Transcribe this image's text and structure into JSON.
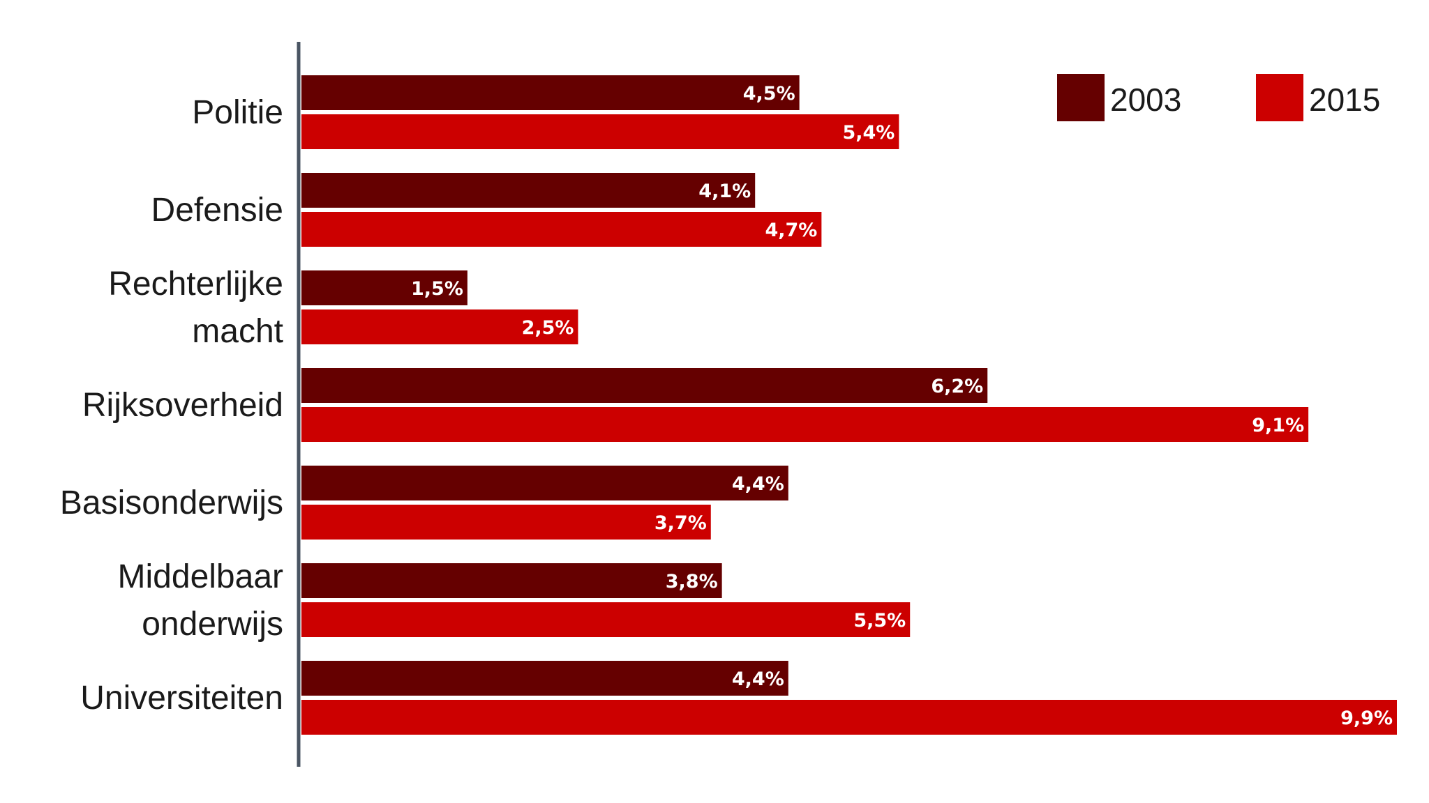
{
  "chart_data": {
    "type": "bar",
    "orientation": "horizontal",
    "categories": [
      [
        "Politie"
      ],
      [
        "Defensie"
      ],
      [
        "Rechterlijke",
        "macht"
      ],
      [
        "Rijksoverheid"
      ],
      [
        "Basisonderwijs"
      ],
      [
        "Middelbaar",
        "onderwijs"
      ],
      [
        "Universiteiten"
      ]
    ],
    "series": [
      {
        "name": "2003",
        "color": "#650000",
        "values": [
          4.5,
          4.1,
          1.5,
          6.2,
          4.4,
          3.8,
          4.4
        ],
        "labels": [
          "4,5%",
          "4,1%",
          "1,5%",
          "6,2%",
          "4,4%",
          "3,8%",
          "4,4%"
        ]
      },
      {
        "name": "2015",
        "color": "#cc0000",
        "values": [
          5.4,
          4.7,
          2.5,
          9.1,
          3.7,
          5.5,
          9.9
        ],
        "labels": [
          "5,4%",
          "4,7%",
          "2,5%",
          "9,1%",
          "3,7%",
          "5,5%",
          "9,9%"
        ]
      }
    ],
    "xlim": [
      0,
      9.9
    ],
    "unit": "%",
    "legend": "top-right",
    "grid": false,
    "axis_color": "#4a5563"
  }
}
